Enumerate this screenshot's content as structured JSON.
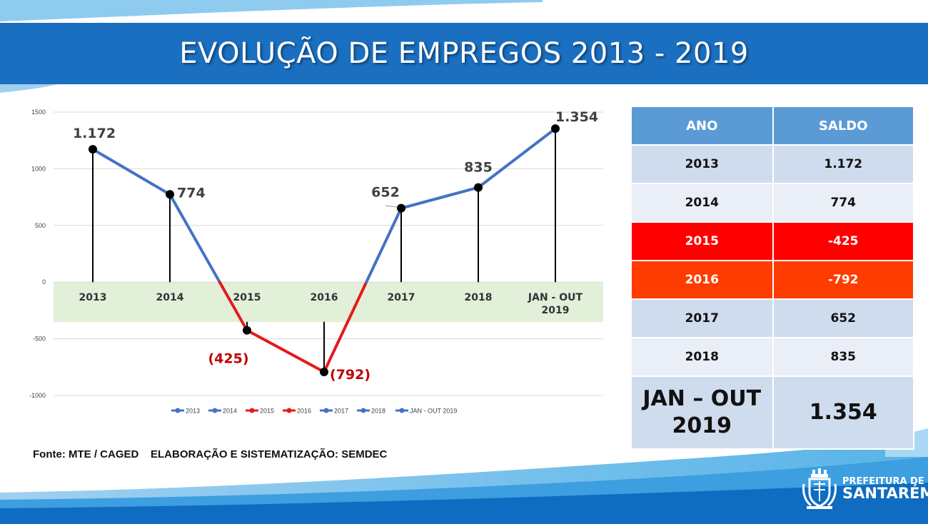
{
  "title": "EVOLUÇÃO DE EMPREGOS  2013 - 2019",
  "source": "Fonte: MTE / CAGED    ELABORAÇÃO E SISTEMATIZAÇÃO: SEMDEC",
  "colors": {
    "header_blue": "#1a6fc0",
    "positive_line": "#4472c4",
    "negative_line": "#e31b1b",
    "negative_label": "#c00000",
    "zero_band": "#e2efd9"
  },
  "chart_data": {
    "type": "line",
    "title": "",
    "xlabel": "",
    "ylabel": "",
    "ylim": [
      -1000,
      1500
    ],
    "yticks": [
      "1500",
      "1000",
      "500",
      "0",
      "-500",
      "-1000"
    ],
    "categories": [
      "2013",
      "2014",
      "2015",
      "2016",
      "2017",
      "2018",
      "JAN - OUT 2019"
    ],
    "values": [
      1172,
      774,
      -425,
      -792,
      652,
      835,
      1354
    ],
    "data_labels": [
      "1.172",
      "774",
      "(425)",
      "(792)",
      "652",
      "835",
      "1.354"
    ],
    "legend": [
      "2013",
      "2014",
      "2015",
      "2016",
      "2017",
      "2018",
      "JAN - OUT 2019"
    ],
    "legend_position": "bottom",
    "grid": true
  },
  "table": {
    "headers": [
      "ANO",
      "SALDO"
    ],
    "rows": [
      {
        "ano": "2013",
        "saldo": "1.172"
      },
      {
        "ano": "2014",
        "saldo": "774"
      },
      {
        "ano": "2015",
        "saldo": "-425"
      },
      {
        "ano": "2016",
        "saldo": "-792"
      },
      {
        "ano": "2017",
        "saldo": "652"
      },
      {
        "ano": "2018",
        "saldo": "835"
      }
    ],
    "last_row": {
      "ano": "JAN – OUT 2019",
      "saldo": "1.354"
    }
  },
  "logo": {
    "line1": "PREFEITURA DE",
    "line2": "SANTARÉM",
    "icon": "coat-of-arms-icon"
  }
}
